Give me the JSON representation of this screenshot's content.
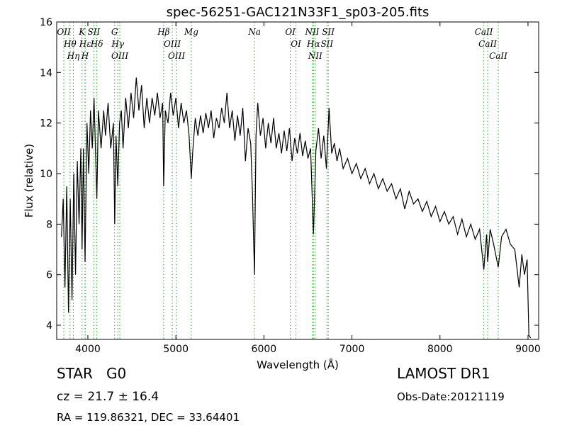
{
  "chart_data": {
    "type": "line",
    "title": "spec-56251-GAC121N33F1_sp03-205.fits",
    "x_label": "Wavelength (Å)",
    "y_label": "Flux (relative)",
    "xlim": [
      3646,
      9121
    ],
    "ylim": [
      3.44,
      16
    ],
    "xticks": [
      4000,
      5000,
      6000,
      7000,
      8000,
      9000
    ],
    "yticks": [
      4,
      6,
      8,
      10,
      12,
      14,
      16
    ],
    "annotations": [
      "STAR   G0",
      "cz = 21.7 ± 16.4",
      "RA = 119.86321, DEC = 33.64401",
      "LAMOST DR1",
      "Obs-Date:20121119"
    ],
    "spectral_lines": [
      {
        "label": "OII",
        "wavelength": 3727
      },
      {
        "label": "Hθ",
        "wavelength": 3798
      },
      {
        "label": "Hη",
        "wavelength": 3835
      },
      {
        "label": "K",
        "wavelength": 3934
      },
      {
        "label": "Hε",
        "wavelength": 3970
      },
      {
        "label": "H",
        "wavelength": 3968
      },
      {
        "label": "SII",
        "wavelength": 4068
      },
      {
        "label": "Hδ",
        "wavelength": 4102
      },
      {
        "label": "G",
        "wavelength": 4304
      },
      {
        "label": "Hγ",
        "wavelength": 4340
      },
      {
        "label": "OIII",
        "wavelength": 4363
      },
      {
        "label": "Hβ",
        "wavelength": 4861
      },
      {
        "label": "OIII",
        "wavelength": 4959
      },
      {
        "label": "OIII",
        "wavelength": 5007
      },
      {
        "label": "Mg",
        "wavelength": 5175
      },
      {
        "label": "Na",
        "wavelength": 5893
      },
      {
        "label": "OI",
        "wavelength": 6300
      },
      {
        "label": "OI",
        "wavelength": 6364
      },
      {
        "label": "NII",
        "wavelength": 6548
      },
      {
        "label": "Hα",
        "wavelength": 6563
      },
      {
        "label": "NII",
        "wavelength": 6583
      },
      {
        "label": "SII",
        "wavelength": 6716
      },
      {
        "label": "SII",
        "wavelength": 6731
      },
      {
        "label": "CaII",
        "wavelength": 8498
      },
      {
        "label": "CaII",
        "wavelength": 8542
      },
      {
        "label": "CaII",
        "wavelength": 8662
      }
    ],
    "line_color": "#2ca02c",
    "series": [
      {
        "name": "flux",
        "color": "#000000",
        "x": [
          3700,
          3720,
          3740,
          3760,
          3780,
          3800,
          3820,
          3840,
          3860,
          3880,
          3900,
          3920,
          3934,
          3950,
          3968,
          3990,
          4010,
          4030,
          4050,
          4070,
          4090,
          4102,
          4120,
          4150,
          4180,
          4200,
          4230,
          4260,
          4290,
          4305,
          4320,
          4340,
          4360,
          4380,
          4400,
          4430,
          4460,
          4490,
          4520,
          4550,
          4580,
          4610,
          4640,
          4670,
          4700,
          4730,
          4760,
          4790,
          4820,
          4850,
          4861,
          4880,
          4910,
          4940,
          4970,
          5000,
          5030,
          5060,
          5090,
          5120,
          5150,
          5175,
          5190,
          5220,
          5250,
          5280,
          5310,
          5340,
          5370,
          5400,
          5430,
          5460,
          5490,
          5520,
          5550,
          5580,
          5610,
          5640,
          5670,
          5700,
          5730,
          5760,
          5790,
          5820,
          5850,
          5870,
          5893,
          5910,
          5930,
          5960,
          5990,
          6020,
          6050,
          6080,
          6110,
          6140,
          6170,
          6200,
          6230,
          6260,
          6290,
          6320,
          6350,
          6380,
          6410,
          6440,
          6470,
          6500,
          6530,
          6563,
          6590,
          6620,
          6650,
          6680,
          6710,
          6740,
          6770,
          6800,
          6830,
          6860,
          6900,
          6950,
          7000,
          7050,
          7100,
          7150,
          7200,
          7250,
          7300,
          7350,
          7400,
          7450,
          7500,
          7550,
          7600,
          7650,
          7700,
          7750,
          7800,
          7850,
          7900,
          7950,
          8000,
          8050,
          8100,
          8150,
          8200,
          8250,
          8300,
          8350,
          8400,
          8450,
          8498,
          8530,
          8542,
          8570,
          8610,
          8662,
          8700,
          8750,
          8800,
          8850,
          8900,
          8930,
          8960,
          8990,
          9010,
          9030
        ],
        "values": [
          7.5,
          9,
          5.5,
          9.5,
          4.5,
          9,
          5,
          10,
          6,
          10.5,
          8,
          11,
          7,
          11,
          6.5,
          12,
          10,
          12.5,
          11,
          13,
          10.5,
          9,
          12.5,
          11,
          12.5,
          11.5,
          12.8,
          11,
          12,
          8,
          11.5,
          9.5,
          12,
          12.5,
          11,
          13,
          11.8,
          13.2,
          12.2,
          13.8,
          12.5,
          13.5,
          11.8,
          13,
          12,
          13,
          12.3,
          13.2,
          12.2,
          12.8,
          9.5,
          12.5,
          12,
          13.2,
          12.3,
          13,
          11.8,
          12.8,
          12,
          12.5,
          11.5,
          9.8,
          10.8,
          12.2,
          11.5,
          12.3,
          11.6,
          12.4,
          11.8,
          12.5,
          11.4,
          12.2,
          11.8,
          12.6,
          12,
          13.2,
          11.8,
          12.5,
          11.3,
          12.3,
          11.5,
          12.6,
          10.5,
          11.8,
          11.2,
          9.2,
          6,
          11.5,
          12.8,
          11.5,
          12.2,
          11,
          12,
          11.2,
          12.2,
          11,
          11.6,
          10.8,
          11.7,
          10.9,
          11.8,
          10.5,
          11.4,
          10.8,
          11.6,
          10.7,
          11.3,
          10.6,
          11,
          7.6,
          10.9,
          11.8,
          10.6,
          11.5,
          10.2,
          12.6,
          10.8,
          11.2,
          10.5,
          11,
          10.2,
          10.6,
          10,
          10.4,
          9.8,
          10.2,
          9.6,
          10,
          9.4,
          9.8,
          9.3,
          9.6,
          9,
          9.4,
          8.6,
          9.3,
          8.8,
          9,
          8.5,
          8.9,
          8.3,
          8.7,
          8.1,
          8.5,
          8,
          8.3,
          7.6,
          8.2,
          7.5,
          8,
          7.4,
          7.8,
          6.2,
          7.6,
          6.5,
          7.8,
          7.2,
          6.3,
          7.5,
          7.8,
          7.2,
          7,
          5.5,
          6.8,
          6,
          6.6,
          3.6,
          3.5
        ]
      }
    ]
  }
}
